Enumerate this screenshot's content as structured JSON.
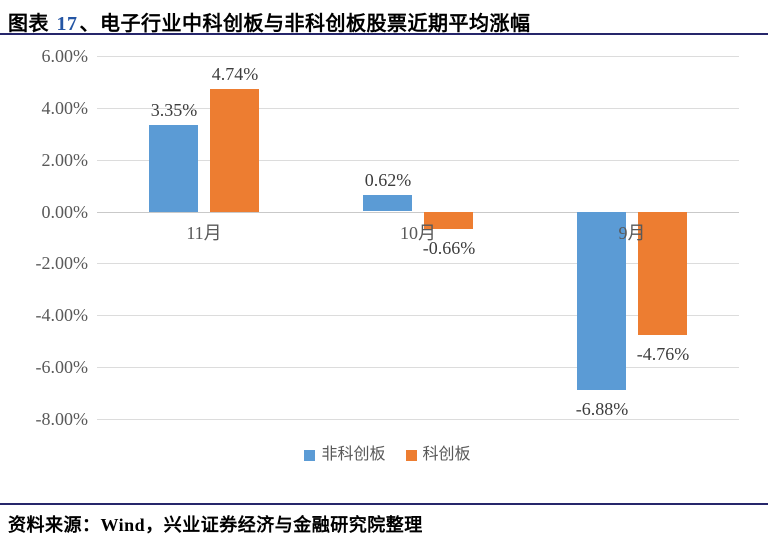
{
  "header": {
    "title_prefix": "图表 ",
    "title_number": "17",
    "title_rest": "、电子行业中科创板与非科创板股票近期平均涨幅"
  },
  "footer": {
    "source": "资料来源：Wind，兴业证券经济与金融研究院整理"
  },
  "colors": {
    "blue": "#5B9BD5",
    "orange": "#ED7D31",
    "grid": "#DCDCDC",
    "axis_text": "#595959",
    "rule": "#26266B",
    "title_number": "#2455A4"
  },
  "chart_data": {
    "type": "bar",
    "title": "电子行业中科创板与非科创板股票近期平均涨幅",
    "categories": [
      "11月",
      "10月",
      "9月"
    ],
    "series": [
      {
        "name": "非科创板",
        "color": "#5B9BD5",
        "values": [
          3.35,
          0.62,
          -6.88
        ],
        "labels": [
          "3.35%",
          "0.62%",
          "-6.88%"
        ]
      },
      {
        "name": "科创板",
        "color": "#ED7D31",
        "values": [
          4.74,
          -0.66,
          -4.76
        ],
        "labels": [
          "4.74%",
          "-0.66%",
          "-4.76%"
        ]
      }
    ],
    "xlabel": "",
    "ylabel": "",
    "ylim": [
      -8,
      6
    ],
    "ytick_step": 2,
    "yticks": [
      "6.00%",
      "4.00%",
      "2.00%",
      "0.00%",
      "-2.00%",
      "-4.00%",
      "-6.00%",
      "-8.00%"
    ],
    "grid": true,
    "legend_position": "bottom"
  }
}
